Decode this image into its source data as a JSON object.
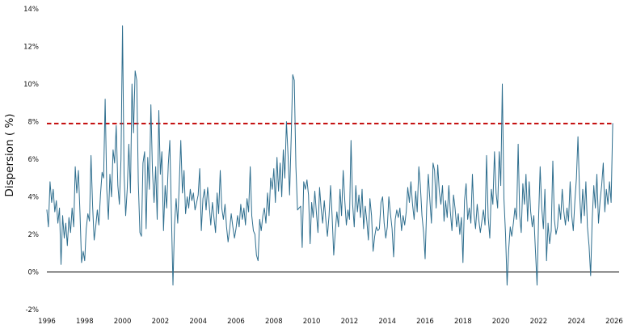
{
  "chart_data": {
    "type": "line",
    "title": "",
    "xlabel": "",
    "ylabel": "Dispersion ( %)",
    "xlim": [
      1996,
      2026
    ],
    "ylim": [
      -2,
      14
    ],
    "grid": false,
    "legend": "none",
    "x_unit": "monthly",
    "x_tick_years": [
      1996,
      1998,
      2000,
      2002,
      2004,
      2006,
      2008,
      2010,
      2012,
      2014,
      2016,
      2018,
      2020,
      2022,
      2024,
      2026
    ],
    "y_ticks": [
      {
        "value": -2,
        "label": "-2%"
      },
      {
        "value": 0,
        "label": "0%"
      },
      {
        "value": 2,
        "label": "2%"
      },
      {
        "value": 4,
        "label": "4%"
      },
      {
        "value": 6,
        "label": "6%"
      },
      {
        "value": 8,
        "label": "8%"
      },
      {
        "value": 10,
        "label": "10%"
      },
      {
        "value": 12,
        "label": "12%"
      },
      {
        "value": 14,
        "label": "14%"
      }
    ],
    "reference_lines": [
      {
        "name": "zero-line",
        "value": 0,
        "color": "#000000",
        "style": "solid",
        "width": 1
      },
      {
        "name": "threshold-line",
        "value": 7.9,
        "color": "#c00000",
        "style": "dashed",
        "width": 1.8
      }
    ],
    "series": [
      {
        "name": "Dispersion",
        "color": "#2e6e8e",
        "start_year": 1996,
        "points_per_year": 12,
        "values": [
          3.3,
          2.4,
          4.8,
          3.7,
          4.4,
          3.2,
          3.8,
          2.6,
          3.4,
          0.4,
          3.0,
          1.8,
          2.6,
          1.4,
          2.9,
          2.1,
          3.4,
          2.4,
          5.6,
          4.2,
          5.4,
          3.1,
          0.5,
          1.1,
          0.6,
          2.3,
          3.1,
          2.7,
          6.2,
          3.5,
          1.7,
          2.4,
          3.3,
          2.5,
          4.1,
          5.3,
          5.0,
          9.2,
          4.4,
          2.8,
          5.2,
          4.0,
          6.5,
          5.8,
          7.8,
          4.6,
          3.6,
          6.0,
          13.1,
          5.2,
          3.0,
          4.4,
          6.8,
          4.2,
          10.0,
          7.4,
          10.7,
          10.2,
          4.8,
          2.1,
          1.9,
          5.8,
          6.4,
          2.3,
          6.1,
          4.4,
          8.9,
          5.4,
          3.7,
          5.6,
          2.8,
          8.6,
          5.2,
          6.4,
          2.2,
          4.6,
          3.4,
          5.7,
          7.0,
          3.2,
          -0.7,
          2.5,
          3.9,
          2.6,
          4.7,
          7.0,
          4.2,
          5.4,
          3.1,
          4.0,
          3.4,
          4.4,
          3.8,
          4.2,
          3.3,
          3.7,
          4.1,
          5.5,
          2.2,
          3.9,
          4.4,
          3.3,
          4.5,
          3.6,
          2.5,
          3.7,
          2.9,
          2.1,
          4.2,
          3.1,
          5.4,
          3.4,
          2.8,
          3.6,
          2.4,
          1.6,
          2.3,
          3.1,
          2.4,
          1.8,
          2.3,
          3.0,
          2.4,
          3.6,
          2.8,
          3.4,
          2.5,
          3.9,
          3.2,
          5.6,
          3.0,
          2.2,
          2.0,
          0.9,
          0.6,
          2.8,
          2.2,
          3.0,
          3.4,
          2.6,
          4.2,
          3.0,
          5.0,
          4.4,
          5.5,
          3.7,
          6.1,
          4.3,
          5.8,
          4.0,
          6.5,
          5.0,
          8.0,
          6.2,
          4.1,
          7.2,
          10.5,
          10.2,
          5.6,
          3.3,
          3.4,
          3.5,
          1.3,
          4.8,
          4.4,
          4.9,
          4.1,
          1.5,
          3.7,
          2.9,
          4.3,
          3.2,
          2.1,
          4.5,
          3.4,
          2.6,
          3.8,
          2.8,
          1.9,
          3.0,
          4.6,
          3.0,
          0.9,
          2.2,
          3.2,
          2.4,
          4.4,
          3.0,
          5.4,
          3.8,
          2.5,
          3.3,
          2.8,
          7.0,
          3.6,
          2.4,
          4.6,
          3.2,
          4.1,
          2.9,
          4.4,
          2.3,
          3.5,
          2.7,
          1.7,
          3.9,
          3.0,
          1.1,
          1.9,
          2.4,
          2.2,
          2.3,
          3.7,
          4.0,
          2.6,
          1.8,
          2.4,
          4.0,
          3.1,
          2.3,
          0.8,
          2.8,
          3.3,
          2.9,
          3.4,
          2.2,
          3.0,
          2.5,
          3.2,
          4.5,
          3.7,
          4.8,
          3.6,
          2.8,
          4.3,
          3.2,
          5.6,
          4.6,
          3.0,
          2.1,
          0.7,
          3.4,
          5.2,
          3.8,
          2.6,
          5.8,
          5.4,
          3.4,
          5.7,
          4.3,
          3.6,
          4.6,
          2.7,
          3.8,
          2.9,
          4.6,
          3.2,
          2.2,
          4.1,
          3.4,
          2.4,
          3.1,
          2.0,
          2.9,
          0.5,
          3.8,
          4.7,
          2.8,
          3.4,
          2.6,
          5.2,
          3.1,
          2.3,
          3.6,
          2.8,
          2.1,
          2.7,
          3.3,
          2.5,
          6.2,
          2.9,
          1.8,
          4.4,
          3.6,
          6.4,
          4.2,
          3.4,
          6.4,
          4.6,
          10.0,
          3.9,
          2.0,
          -0.7,
          1.2,
          2.4,
          1.9,
          2.6,
          3.4,
          2.8,
          6.8,
          3.0,
          2.1,
          4.7,
          3.6,
          5.2,
          2.7,
          4.8,
          3.2,
          2.4,
          3.0,
          1.1,
          -0.7,
          2.9,
          5.6,
          3.4,
          2.3,
          4.4,
          0.6,
          2.6,
          1.5,
          2.2,
          5.9,
          2.8,
          2.0,
          2.4,
          3.6,
          2.8,
          4.4,
          3.2,
          2.5,
          3.4,
          2.7,
          4.8,
          3.0,
          2.2,
          3.8,
          5.0,
          7.2,
          4.2,
          2.6,
          4.4,
          3.0,
          4.8,
          2.4,
          1.4,
          -0.2,
          2.8,
          4.6,
          3.4,
          5.2,
          2.6,
          3.8,
          4.6,
          5.8,
          3.2,
          4.4,
          3.6,
          4.8,
          3.7,
          7.9
        ]
      }
    ]
  }
}
